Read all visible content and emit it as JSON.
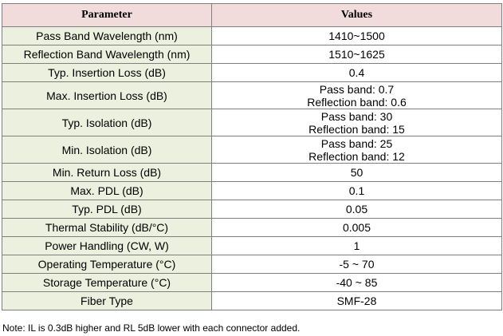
{
  "table": {
    "header": [
      "Parameter",
      "Values"
    ],
    "rows": [
      [
        "Pass Band Wavelength (nm)",
        [
          "1410~1500"
        ]
      ],
      [
        "Reflection Band Wavelength (nm)",
        [
          "1510~1625"
        ]
      ],
      [
        "Typ. Insertion Loss (dB)",
        [
          "0.4"
        ]
      ],
      [
        "Max. Insertion Loss (dB)",
        [
          "Pass band: 0.7",
          "Reflection band: 0.6"
        ]
      ],
      [
        "Typ. Isolation (dB)",
        [
          "Pass band: 30",
          "Reflection band: 15"
        ]
      ],
      [
        "Min. Isolation (dB)",
        [
          "Pass band: 25",
          "Reflection band: 12"
        ]
      ],
      [
        "Min. Return Loss (dB)",
        [
          "50"
        ]
      ],
      [
        "Max. PDL (dB)",
        [
          "0.1"
        ]
      ],
      [
        "Typ. PDL (dB)",
        [
          "0.05"
        ]
      ],
      [
        "Thermal Stability (dB/°C)",
        [
          "0.005"
        ]
      ],
      [
        "Power Handling (CW, W)",
        [
          "1"
        ]
      ],
      [
        "Operating Temperature (°C)",
        [
          "-5 ~ 70"
        ]
      ],
      [
        "Storage Temperature (°C)",
        [
          "-40 ~ 85"
        ]
      ],
      [
        "Fiber Type",
        [
          "SMF-28"
        ]
      ]
    ]
  },
  "note": "Note: IL is 0.3dB higher and RL 5dB lower with each connector added."
}
